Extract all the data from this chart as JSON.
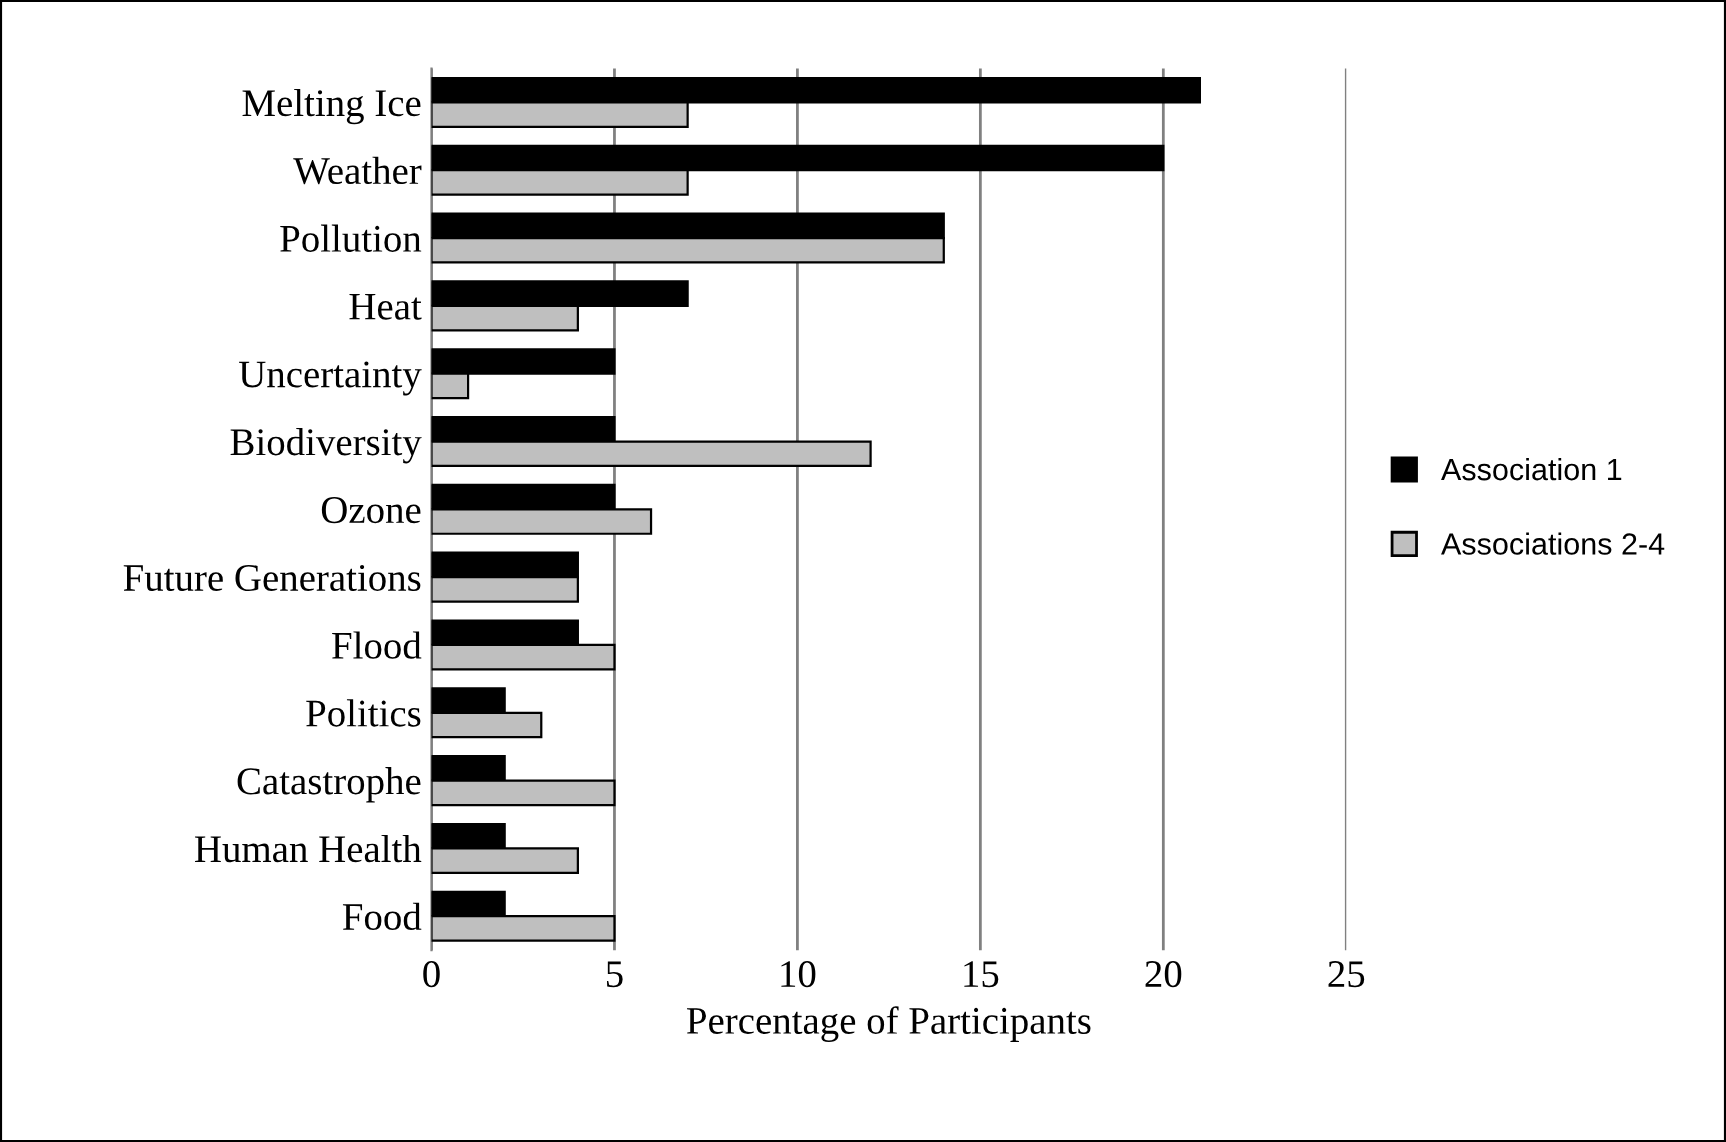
{
  "chart_data": {
    "type": "bar",
    "orientation": "horizontal",
    "xlabel": "Percentage of Participants",
    "categories": [
      "Melting Ice",
      "Weather",
      "Pollution",
      "Heat",
      "Uncertainty",
      "Biodiversity",
      "Ozone",
      "Future Generations",
      "Flood",
      "Politics",
      "Catastrophe",
      "Human Health",
      "Food"
    ],
    "series": [
      {
        "name": "Association 1",
        "color": "#000000",
        "values": [
          21,
          20,
          14,
          7,
          5,
          5,
          5,
          4,
          4,
          2,
          2,
          2,
          2
        ]
      },
      {
        "name": "Associations 2-4",
        "color": "#bfbfbf",
        "values": [
          7,
          7,
          14,
          4,
          1,
          12,
          6,
          4,
          5,
          3,
          5,
          4,
          5
        ]
      }
    ],
    "xlim": [
      0,
      25
    ],
    "xticks": [
      0,
      5,
      10,
      15,
      20,
      25
    ],
    "grid": "x",
    "legend": "right"
  }
}
